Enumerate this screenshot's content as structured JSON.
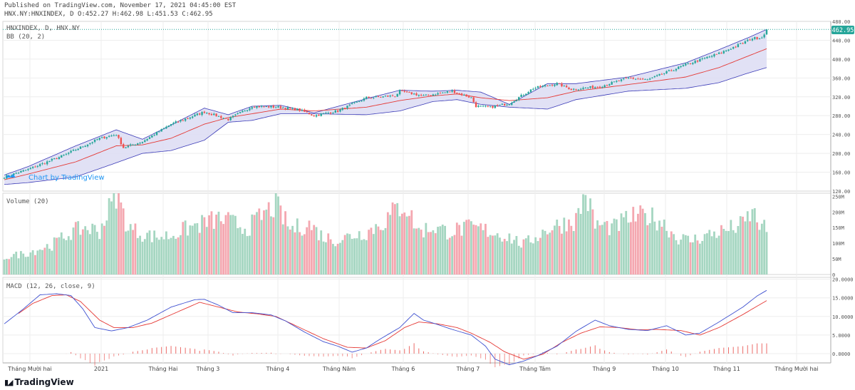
{
  "header": {
    "published": "Published on TradingView.com, November 17, 2021 04:45:00 EST",
    "ohlc": "HNX.NY:HNXINDEX, D O:452.27 H:462.98 L:451.53 C:462.95"
  },
  "main_pane": {
    "symbol_label": "HNXINDEX, D, HNX.NY",
    "indicator_label": "BB (20, 2)",
    "last_price": "462.95",
    "watermark": "Chart by TradingView"
  },
  "volume_pane": {
    "label": "Volume (20)"
  },
  "macd_pane": {
    "label": "MACD (12, 26, close, 9)"
  },
  "brand": {
    "name": "TradingView"
  },
  "colors": {
    "up": "#26a69a",
    "down": "#ef5350",
    "vol_up": "#a5d6c1",
    "vol_down": "#f4a7b0",
    "bb_fill": "#dcdcf3",
    "bb_band": "#3b3bb7",
    "bb_basis": "#e53935",
    "macd": "#3f51d0",
    "signal": "#e53935",
    "grid": "#eeeeee"
  },
  "chart_data": [
    {
      "type": "candlestick",
      "title": "HNXINDEX, D, HNX.NY",
      "indicator": "BB (20, 2)",
      "ylim": [
        120,
        480
      ],
      "y_ticks": [
        "120.00",
        "160.00",
        "200.00",
        "240.00",
        "280.00",
        "320.00",
        "360.00",
        "400.00",
        "440.00",
        "480.00"
      ],
      "x_ticks": [
        "Tháng Mười hai",
        "2021",
        "Tháng Hai",
        "Tháng 3",
        "Tháng 4",
        "Tháng Năm",
        "Tháng 6",
        "Tháng 7",
        "Tháng Tám",
        "Tháng 9",
        "Tháng 10",
        "Tháng 11",
        "Tháng Mười hai"
      ],
      "close_anchors": [
        [
          0,
          150
        ],
        [
          10,
          166
        ],
        [
          25,
          196
        ],
        [
          40,
          232
        ],
        [
          47,
          240
        ],
        [
          50,
          212
        ],
        [
          58,
          225
        ],
        [
          70,
          262
        ],
        [
          84,
          288
        ],
        [
          94,
          272
        ],
        [
          104,
          300
        ],
        [
          116,
          298
        ],
        [
          124,
          292
        ],
        [
          130,
          280
        ],
        [
          140,
          290
        ],
        [
          152,
          318
        ],
        [
          164,
          322
        ],
        [
          166,
          332
        ],
        [
          176,
          322
        ],
        [
          188,
          332
        ],
        [
          196,
          318
        ],
        [
          198,
          300
        ],
        [
          204,
          298
        ],
        [
          212,
          306
        ],
        [
          222,
          338
        ],
        [
          232,
          348
        ],
        [
          238,
          336
        ],
        [
          250,
          342
        ],
        [
          262,
          360
        ],
        [
          270,
          356
        ],
        [
          286,
          388
        ],
        [
          300,
          412
        ],
        [
          306,
          425
        ],
        [
          314,
          444
        ],
        [
          318,
          446
        ],
        [
          320,
          463
        ]
      ],
      "bb_upper_anchors": [
        [
          0,
          154
        ],
        [
          10,
          172
        ],
        [
          30,
          216
        ],
        [
          47,
          250
        ],
        [
          58,
          230
        ],
        [
          70,
          260
        ],
        [
          84,
          296
        ],
        [
          94,
          282
        ],
        [
          104,
          300
        ],
        [
          116,
          302
        ],
        [
          130,
          286
        ],
        [
          152,
          316
        ],
        [
          166,
          334
        ],
        [
          180,
          332
        ],
        [
          190,
          334
        ],
        [
          200,
          330
        ],
        [
          212,
          304
        ],
        [
          228,
          348
        ],
        [
          240,
          348
        ],
        [
          262,
          362
        ],
        [
          286,
          392
        ],
        [
          300,
          420
        ],
        [
          312,
          445
        ],
        [
          320,
          463
        ]
      ],
      "bb_basis_anchors": [
        [
          0,
          144
        ],
        [
          10,
          156
        ],
        [
          30,
          182
        ],
        [
          47,
          216
        ],
        [
          58,
          218
        ],
        [
          70,
          232
        ],
        [
          84,
          262
        ],
        [
          94,
          276
        ],
        [
          104,
          284
        ],
        [
          116,
          294
        ],
        [
          130,
          290
        ],
        [
          152,
          298
        ],
        [
          166,
          312
        ],
        [
          180,
          322
        ],
        [
          190,
          326
        ],
        [
          200,
          318
        ],
        [
          212,
          312
        ],
        [
          228,
          318
        ],
        [
          240,
          332
        ],
        [
          262,
          346
        ],
        [
          286,
          362
        ],
        [
          300,
          382
        ],
        [
          312,
          406
        ],
        [
          320,
          422
        ]
      ],
      "bb_lower_anchors": [
        [
          0,
          134
        ],
        [
          10,
          138
        ],
        [
          30,
          150
        ],
        [
          47,
          180
        ],
        [
          58,
          200
        ],
        [
          70,
          206
        ],
        [
          84,
          228
        ],
        [
          94,
          266
        ],
        [
          104,
          270
        ],
        [
          116,
          284
        ],
        [
          130,
          284
        ],
        [
          152,
          282
        ],
        [
          166,
          290
        ],
        [
          180,
          310
        ],
        [
          190,
          314
        ],
        [
          200,
          304
        ],
        [
          212,
          298
        ],
        [
          228,
          294
        ],
        [
          240,
          314
        ],
        [
          262,
          332
        ],
        [
          286,
          338
        ],
        [
          300,
          350
        ],
        [
          312,
          370
        ],
        [
          320,
          382
        ]
      ]
    },
    {
      "type": "bar",
      "title": "Volume (20)",
      "ylim": [
        0,
        260000000
      ],
      "y_ticks": [
        "0",
        "50M",
        "100M",
        "150M",
        "200M",
        "250M"
      ],
      "volume_anchors": [
        [
          0,
          55
        ],
        [
          10,
          70
        ],
        [
          20,
          95
        ],
        [
          28,
          135
        ],
        [
          34,
          150
        ],
        [
          40,
          140
        ],
        [
          47,
          260
        ],
        [
          52,
          150
        ],
        [
          58,
          130
        ],
        [
          64,
          120
        ],
        [
          70,
          125
        ],
        [
          76,
          145
        ],
        [
          84,
          165
        ],
        [
          90,
          178
        ],
        [
          96,
          165
        ],
        [
          102,
          148
        ],
        [
          110,
          200
        ],
        [
          114,
          222
        ],
        [
          120,
          145
        ],
        [
          128,
          160
        ],
        [
          134,
          120
        ],
        [
          140,
          110
        ],
        [
          146,
          126
        ],
        [
          152,
          135
        ],
        [
          160,
          172
        ],
        [
          164,
          205
        ],
        [
          168,
          225
        ],
        [
          174,
          138
        ],
        [
          180,
          152
        ],
        [
          186,
          138
        ],
        [
          196,
          150
        ],
        [
          202,
          142
        ],
        [
          212,
          120
        ],
        [
          218,
          95
        ],
        [
          222,
          115
        ],
        [
          228,
          145
        ],
        [
          234,
          162
        ],
        [
          240,
          175
        ],
        [
          244,
          260
        ],
        [
          248,
          160
        ],
        [
          256,
          150
        ],
        [
          262,
          180
        ],
        [
          270,
          188
        ],
        [
          276,
          170
        ],
        [
          282,
          120
        ],
        [
          288,
          108
        ],
        [
          296,
          128
        ],
        [
          304,
          145
        ],
        [
          310,
          160
        ],
        [
          314,
          200
        ],
        [
          318,
          150
        ],
        [
          321,
          140
        ]
      ],
      "notable_values_millions": [
        260,
        225,
        220,
        210,
        195
      ]
    },
    {
      "type": "line",
      "title": "MACD (12, 26, close, 9)",
      "ylim": [
        -2.5,
        20.5
      ],
      "y_ticks": [
        "0.0000",
        "5.0000",
        "10.0000",
        "15.0000",
        "20.0000"
      ],
      "macd_anchors": [
        [
          0,
          8
        ],
        [
          8,
          12
        ],
        [
          15,
          15.8
        ],
        [
          22,
          16.1
        ],
        [
          28,
          15.6
        ],
        [
          33,
          12
        ],
        [
          38,
          7
        ],
        [
          45,
          6.1
        ],
        [
          52,
          7
        ],
        [
          60,
          9
        ],
        [
          70,
          12.5
        ],
        [
          80,
          14.5
        ],
        [
          84,
          14.6
        ],
        [
          90,
          13
        ],
        [
          96,
          11
        ],
        [
          104,
          11
        ],
        [
          112,
          10.4
        ],
        [
          118,
          8.8
        ],
        [
          126,
          5.8
        ],
        [
          134,
          3.2
        ],
        [
          140,
          2
        ],
        [
          146,
          0.4
        ],
        [
          152,
          1.5
        ],
        [
          158,
          4
        ],
        [
          166,
          7
        ],
        [
          172,
          10.8
        ],
        [
          176,
          9
        ],
        [
          182,
          7.8
        ],
        [
          188,
          6.5
        ],
        [
          196,
          5
        ],
        [
          202,
          2
        ],
        [
          206,
          -1.5
        ],
        [
          212,
          -3
        ],
        [
          218,
          -2
        ],
        [
          224,
          -0.5
        ],
        [
          232,
          2
        ],
        [
          240,
          6
        ],
        [
          248,
          9
        ],
        [
          254,
          7.5
        ],
        [
          262,
          6.5
        ],
        [
          270,
          6.2
        ],
        [
          278,
          7.5
        ],
        [
          286,
          5
        ],
        [
          292,
          5.5
        ],
        [
          300,
          8.5
        ],
        [
          310,
          12.5
        ],
        [
          316,
          15.5
        ],
        [
          320,
          17
        ],
        [
          324,
          18.2
        ],
        [
          326,
          19.5
        ]
      ],
      "signal_anchors": [
        [
          6,
          10.8
        ],
        [
          12,
          13.5
        ],
        [
          20,
          15.6
        ],
        [
          26,
          15.8
        ],
        [
          32,
          14
        ],
        [
          40,
          9
        ],
        [
          46,
          7
        ],
        [
          54,
          7
        ],
        [
          62,
          8.2
        ],
        [
          72,
          11
        ],
        [
          82,
          13.8
        ],
        [
          90,
          12.5
        ],
        [
          98,
          11.2
        ],
        [
          106,
          10.7
        ],
        [
          114,
          10
        ],
        [
          124,
          7
        ],
        [
          134,
          4
        ],
        [
          144,
          1.7
        ],
        [
          152,
          1.5
        ],
        [
          160,
          3.5
        ],
        [
          168,
          7
        ],
        [
          174,
          8.5
        ],
        [
          182,
          8
        ],
        [
          190,
          7
        ],
        [
          196,
          5.5
        ],
        [
          204,
          3
        ],
        [
          210,
          0.5
        ],
        [
          218,
          -1.5
        ],
        [
          226,
          -0.2
        ],
        [
          234,
          3
        ],
        [
          242,
          5.5
        ],
        [
          250,
          7.2
        ],
        [
          258,
          7
        ],
        [
          266,
          6.4
        ],
        [
          274,
          6.5
        ],
        [
          284,
          6.2
        ],
        [
          292,
          5
        ],
        [
          300,
          7
        ],
        [
          310,
          10.5
        ],
        [
          318,
          13.5
        ],
        [
          322,
          15
        ],
        [
          326,
          17
        ]
      ]
    }
  ]
}
